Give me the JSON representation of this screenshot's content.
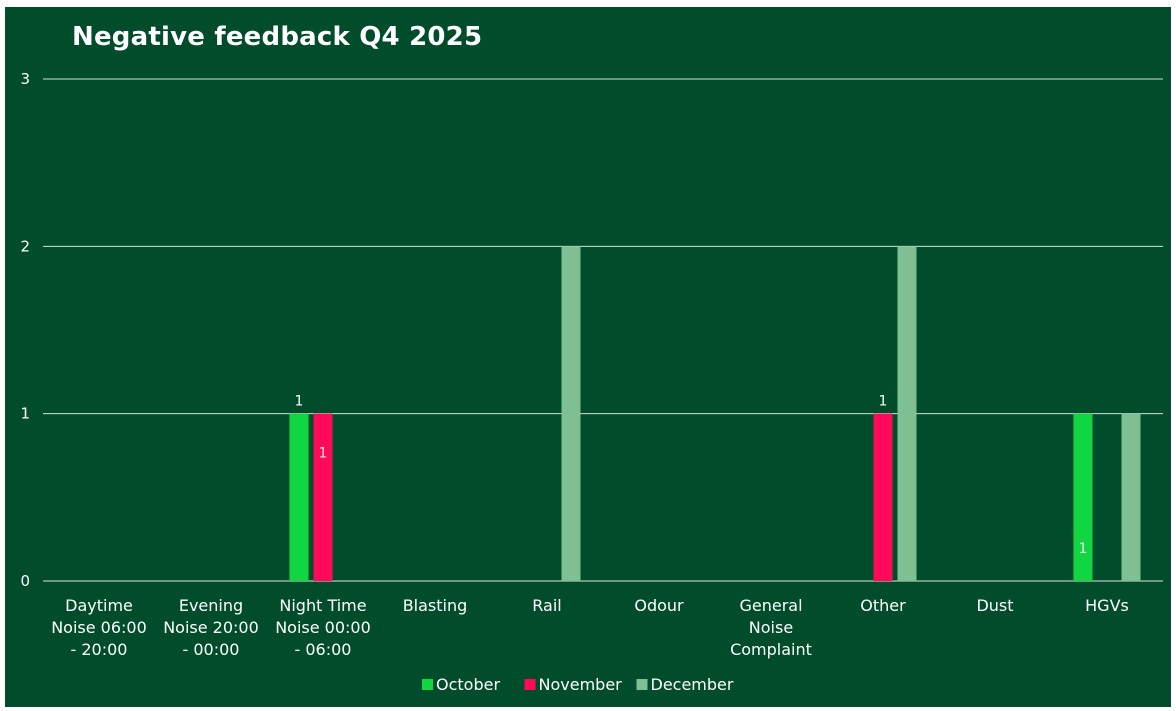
{
  "chart_data": {
    "type": "bar",
    "title": "Negative feedback Q4 2025",
    "xlabel": "",
    "ylabel": "",
    "ylim": [
      0,
      3
    ],
    "yticks": [
      "0",
      "1",
      "2",
      "3"
    ],
    "grid": true,
    "legend_position": "bottom",
    "background_color": "#014d2b",
    "categories": [
      [
        "Daytime",
        "Noise 06:00",
        "- 20:00"
      ],
      [
        "Evening",
        "Noise 20:00",
        "- 00:00"
      ],
      [
        "Night Time",
        "Noise 00:00",
        "- 06:00"
      ],
      [
        "Blasting"
      ],
      [
        "Rail"
      ],
      [
        "Odour"
      ],
      [
        "General",
        "Noise",
        "Complaint"
      ],
      [
        "Other"
      ],
      [
        "Dust"
      ],
      [
        "HGVs"
      ]
    ],
    "series": [
      {
        "name": "October",
        "color": "#12d641",
        "values": [
          0,
          0,
          1,
          0,
          0,
          0,
          0,
          0,
          0,
          1
        ],
        "data_labels": [
          {
            "index": 2,
            "text": "1",
            "position": "outside"
          },
          {
            "index": 9,
            "text": "1",
            "position": "inside-bottom"
          }
        ]
      },
      {
        "name": "November",
        "color": "#ff0a5a",
        "values": [
          0,
          0,
          1,
          0,
          0,
          0,
          0,
          1,
          0,
          0
        ],
        "data_labels": [
          {
            "index": 2,
            "text": "1",
            "position": "inside-middle"
          },
          {
            "index": 7,
            "text": "1",
            "position": "outside"
          }
        ]
      },
      {
        "name": "December",
        "color": "#7fbf94",
        "values": [
          0,
          0,
          0,
          0,
          2,
          0,
          0,
          2,
          0,
          1
        ],
        "data_labels": []
      }
    ]
  }
}
